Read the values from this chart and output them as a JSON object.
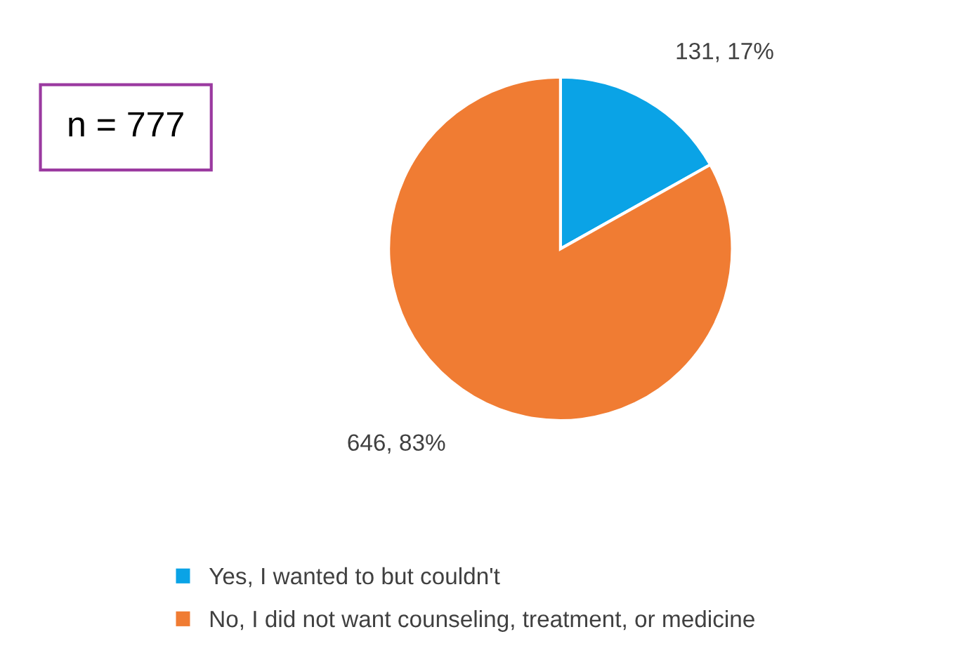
{
  "chart_data": {
    "type": "pie",
    "categories": [
      "Yes, I wanted to but couldn't",
      "No, I did not want counseling, treatment, or medicine"
    ],
    "values": [
      131,
      646
    ],
    "colors": [
      "#0aa3e6",
      "#f07c33"
    ],
    "value_labels": [
      "131, 17%",
      "646, 83%"
    ],
    "annotations": [
      "n = 777"
    ],
    "legend": "bottom"
  }
}
